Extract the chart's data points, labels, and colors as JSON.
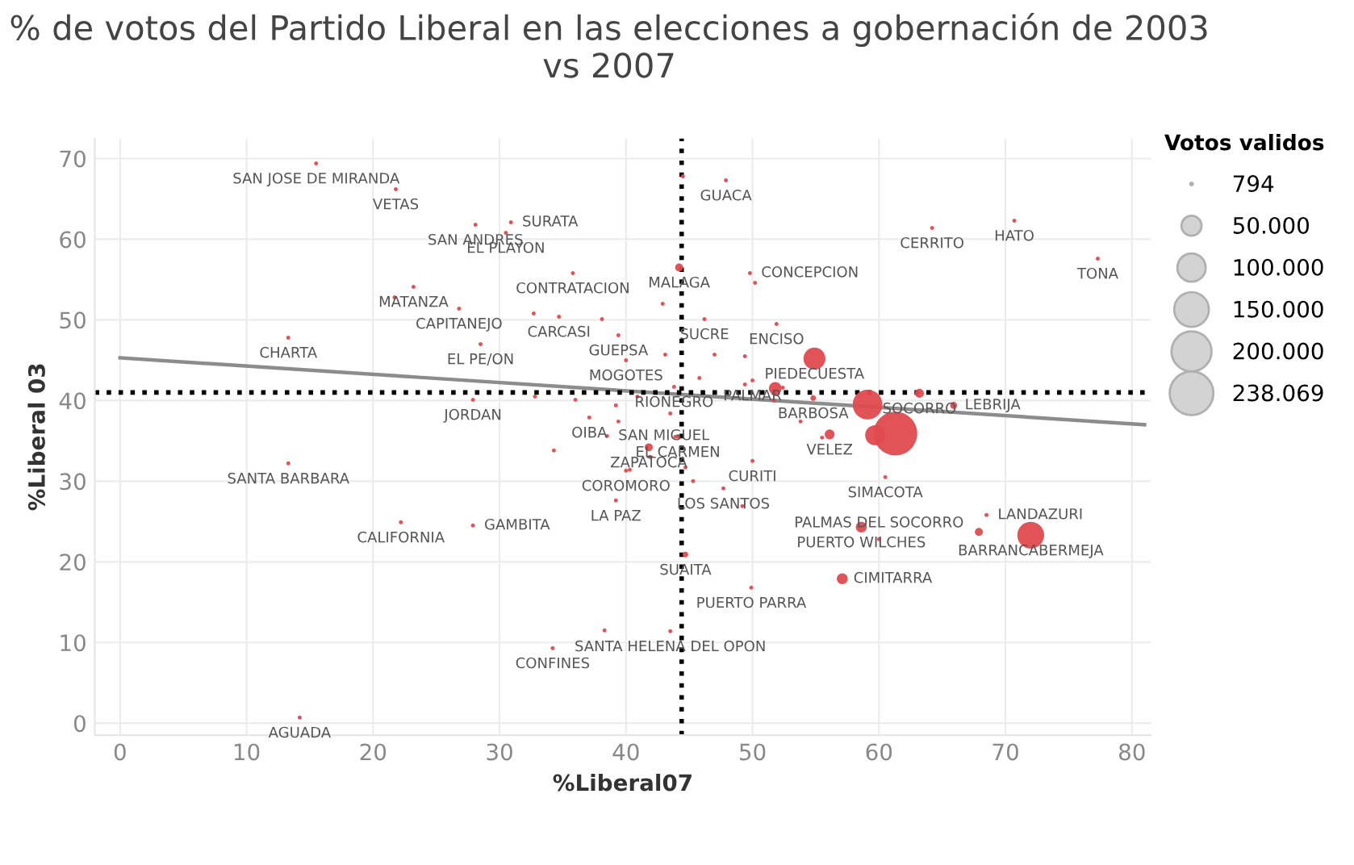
{
  "chart_data": {
    "type": "bubble",
    "title": "% de votos del Partido Liberal en las elecciones a gobernación de 2003 vs 2007",
    "xlabel": "%Liberal07",
    "ylabel": "%Liberal 03",
    "legend_title": "Votos validos",
    "grid": true,
    "xlim": [
      -2,
      81.5
    ],
    "ylim": [
      -1.5,
      72.5
    ],
    "xticks": [
      0,
      10,
      20,
      30,
      40,
      50,
      60,
      70,
      80
    ],
    "yticks": [
      0,
      10,
      20,
      30,
      40,
      50,
      60,
      70
    ],
    "size_legend": [
      794,
      {
        "value": 50000,
        "label": "50.000"
      },
      {
        "value": 100000,
        "label": "100.000"
      },
      {
        "value": 150000,
        "label": "150.000"
      },
      {
        "value": 200000,
        "label": "200.000"
      },
      {
        "value": 238069,
        "label": "238.069"
      }
    ],
    "series": [
      {
        "color": "#e04a4f",
        "x": [
          15.5,
          21.8,
          28.1,
          30.9,
          30.5,
          35.8,
          23.2,
          21.7,
          26.8,
          32.7,
          34.7,
          38.1,
          39.4,
          13.3,
          28.5,
          40.0,
          42.9,
          43.1,
          43.8,
          27.9,
          32.8,
          36.0,
          37.1,
          39.2,
          39.4,
          43.5,
          44.2,
          44.5,
          47.9,
          64.2,
          70.7,
          77.3,
          49.8,
          50.2,
          46.2,
          51.9,
          47.0,
          49.4,
          54.9,
          45.8,
          50.0,
          49.4,
          51.8,
          52.4,
          51.7,
          54.8,
          63.2,
          59.1,
          65.9,
          53.8,
          40.9,
          61.3,
          59.7,
          44.1,
          56.1,
          55.5,
          50.0,
          44.7,
          45.3,
          47.7,
          60.5,
          49.2,
          58.6,
          60.0,
          68.5,
          67.9,
          72.0,
          44.7,
          49.9,
          57.1,
          43.5,
          38.5,
          34.3,
          41.8,
          41.9,
          13.3,
          40.0,
          40.3,
          39.2,
          22.2,
          27.9,
          38.3,
          34.2,
          14.2,
          43.9
        ],
        "values": [
          69.4,
          66.2,
          61.8,
          62.1,
          60.8,
          55.8,
          54.1,
          52.8,
          51.4,
          50.8,
          50.4,
          50.1,
          48.1,
          47.8,
          47.0,
          45.0,
          52.0,
          45.7,
          41.7,
          40.1,
          40.5,
          40.1,
          37.9,
          39.4,
          37.4,
          38.4,
          56.5,
          67.8,
          67.3,
          61.4,
          62.3,
          57.6,
          55.8,
          54.6,
          50.1,
          49.5,
          45.7,
          45.5,
          45.2,
          42.8,
          42.5,
          42.0,
          41.5,
          41.6,
          40.0,
          40.3,
          40.9,
          39.5,
          39.4,
          37.4,
          40.5,
          35.9,
          35.7,
          35.5,
          35.8,
          35.4,
          32.5,
          31.7,
          30.0,
          29.1,
          30.5,
          26.9,
          24.3,
          22.8,
          25.8,
          23.7,
          23.3,
          20.9,
          16.8,
          17.9,
          11.4,
          35.6,
          33.8,
          34.2,
          33.0,
          32.2,
          31.3,
          31.4,
          27.6,
          24.9,
          24.5,
          11.5,
          9.3,
          0.7,
          35.5
        ],
        "sizes": [
          2000,
          2000,
          2000,
          2000,
          2000,
          2000,
          2000,
          2000,
          2000,
          2000,
          2000,
          2000,
          2000,
          2000,
          2000,
          2000,
          2000,
          2000,
          2000,
          2000,
          2000,
          2000,
          2000,
          2000,
          2000,
          2000,
          8000,
          2000,
          2000,
          2000,
          2000,
          2000,
          2000,
          2000,
          2000,
          2000,
          2000,
          2000,
          60000,
          2000,
          2000,
          2000,
          20000,
          2000,
          2000,
          4000,
          10000,
          110000,
          6000,
          2000,
          2000,
          238069,
          50000,
          2000,
          12000,
          2000,
          2000,
          2000,
          2000,
          2000,
          2000,
          2000,
          15000,
          2000,
          2000,
          8000,
          90000,
          4000,
          2000,
          15000,
          2000,
          2000,
          2000,
          8000,
          2000,
          2000,
          2000,
          2000,
          2000,
          2000,
          2000,
          2000,
          2000,
          2000,
          2000
        ]
      },
      {
        "type": "line",
        "color": "#8c8c8c",
        "x": [
          0,
          81
        ],
        "values": [
          45.3,
          37.0
        ]
      }
    ],
    "ref_lines": [
      {
        "axis": "x",
        "value": 44.4,
        "color": "#000000",
        "line_style": "dotted"
      },
      {
        "axis": "y",
        "value": 41.0,
        "color": "#000000",
        "line_style": "dotted"
      }
    ],
    "annotations": [
      {
        "text": "SAN JOSE DE MIRANDA",
        "x": 15.5,
        "y": 69.4
      },
      {
        "text": "VETAS",
        "x": 21.8,
        "y": 66.2
      },
      {
        "text": "SAN ANDRES",
        "x": 28.1,
        "y": 61.8
      },
      {
        "text": "SURATA",
        "x": 30.9,
        "y": 62.1
      },
      {
        "text": "EL PLAYON",
        "x": 30.5,
        "y": 60.8
      },
      {
        "text": "CONTRATACION",
        "x": 35.8,
        "y": 55.8
      },
      {
        "text": "MATANZA",
        "x": 23.2,
        "y": 54.1
      },
      {
        "text": "CAPITANEJO",
        "x": 26.8,
        "y": 51.4
      },
      {
        "text": "CARCASI",
        "x": 34.7,
        "y": 50.4
      },
      {
        "text": "GUEPSA",
        "x": 39.4,
        "y": 48.1
      },
      {
        "text": "CHARTA",
        "x": 13.3,
        "y": 47.8
      },
      {
        "text": "EL PE/ON",
        "x": 28.5,
        "y": 47.0
      },
      {
        "text": "MOGOTES",
        "x": 40.0,
        "y": 45.0
      },
      {
        "text": "RIONEGRO",
        "x": 43.8,
        "y": 41.7
      },
      {
        "text": "JORDAN",
        "x": 27.9,
        "y": 40.1
      },
      {
        "text": "OIBA",
        "x": 37.1,
        "y": 37.9
      },
      {
        "text": "MALAGA",
        "x": 44.2,
        "y": 56.5
      },
      {
        "text": "GUACA",
        "x": 47.9,
        "y": 67.3
      },
      {
        "text": "CERRITO",
        "x": 64.2,
        "y": 61.4
      },
      {
        "text": "HATO",
        "x": 70.7,
        "y": 62.3
      },
      {
        "text": "TONA",
        "x": 77.3,
        "y": 57.6
      },
      {
        "text": "CONCEPCION",
        "x": 49.8,
        "y": 55.8
      },
      {
        "text": "SUCRE",
        "x": 46.2,
        "y": 50.1
      },
      {
        "text": "ENCISO",
        "x": 51.9,
        "y": 49.5
      },
      {
        "text": "PIEDECUESTA",
        "x": 54.9,
        "y": 45.2
      },
      {
        "text": "PALMAR",
        "x": 50.0,
        "y": 42.5
      },
      {
        "text": "BARBOSA",
        "x": 54.8,
        "y": 40.3
      },
      {
        "text": "SOCORRO",
        "x": 63.2,
        "y": 40.9
      },
      {
        "text": "LEBRIJA",
        "x": 65.9,
        "y": 39.4
      },
      {
        "text": "EL CARMEN",
        "x": 44.1,
        "y": 35.5
      },
      {
        "text": "VELEZ",
        "x": 56.1,
        "y": 35.8
      },
      {
        "text": "CURITI",
        "x": 50.0,
        "y": 32.5
      },
      {
        "text": "LOS SANTOS",
        "x": 47.7,
        "y": 29.1
      },
      {
        "text": "SIMACOTA",
        "x": 60.5,
        "y": 30.5
      },
      {
        "text": "PUERTO WILCHES",
        "x": 58.6,
        "y": 24.3
      },
      {
        "text": "PALMAS DEL SOCORRO",
        "x": 60.0,
        "y": 22.8
      },
      {
        "text": "LANDAZURI",
        "x": 68.5,
        "y": 25.8
      },
      {
        "text": "BARRANCABERMEJA",
        "x": 72.0,
        "y": 23.3
      },
      {
        "text": "SUAITA",
        "x": 44.7,
        "y": 20.9
      },
      {
        "text": "PUERTO PARRA",
        "x": 49.9,
        "y": 16.8
      },
      {
        "text": "CIMITARRA",
        "x": 57.1,
        "y": 17.9
      },
      {
        "text": "SANTA HELENA DEL OPON",
        "x": 43.5,
        "y": 11.4
      },
      {
        "text": "SAN MIGUEL",
        "x": 38.5,
        "y": 35.6
      },
      {
        "text": "ZAPATOCA",
        "x": 41.8,
        "y": 34.2
      },
      {
        "text": "SANTA BARBARA",
        "x": 13.3,
        "y": 32.2
      },
      {
        "text": "COROMORO",
        "x": 40.0,
        "y": 31.3
      },
      {
        "text": "LA PAZ",
        "x": 39.2,
        "y": 27.6
      },
      {
        "text": "CALIFORNIA",
        "x": 22.2,
        "y": 24.9
      },
      {
        "text": "GAMBITA",
        "x": 27.9,
        "y": 24.5
      },
      {
        "text": "CONFINES",
        "x": 34.2,
        "y": 9.3
      },
      {
        "text": "AGUADA",
        "x": 14.2,
        "y": 0.7
      }
    ]
  }
}
